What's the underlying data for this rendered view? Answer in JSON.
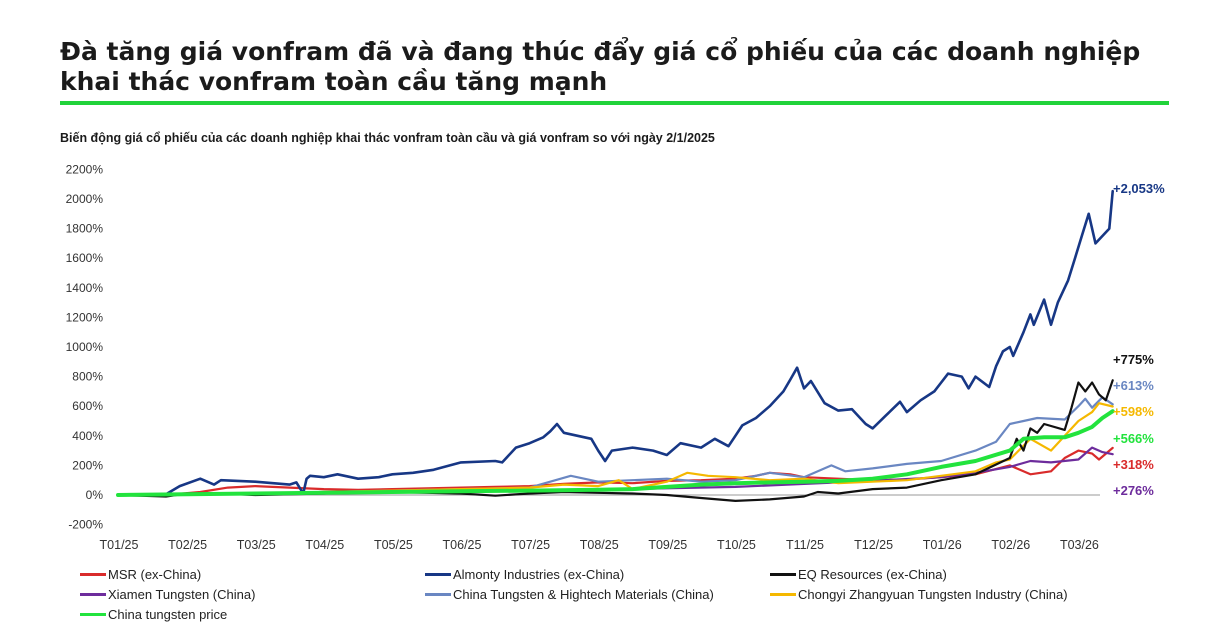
{
  "title": "Đà tăng giá vonfram đã và đang thúc đẩy giá cổ phiếu của các doanh nghiệp khai thác vonfram toàn cầu tăng mạnh",
  "accent_color": "#21d33a",
  "chart_data": {
    "type": "line",
    "title": "Biến động giá cổ phiếu của các doanh nghiệp khai thác vonfram toàn cầu và giá vonfram so với ngày 2/1/2025",
    "xlabel": "",
    "ylabel": "",
    "ylim": [
      -200,
      2200
    ],
    "y_ticks": [
      "-200%",
      "0%",
      "200%",
      "400%",
      "600%",
      "800%",
      "1000%",
      "1200%",
      "1400%",
      "1600%",
      "1800%",
      "2000%",
      "2200%"
    ],
    "x_ticks": [
      "T01/25",
      "T02/25",
      "T03/25",
      "T04/25",
      "T05/25",
      "T06/25",
      "T07/25",
      "T08/25",
      "T09/25",
      "T10/25",
      "T11/25",
      "T12/25",
      "T01/26",
      "T02/26",
      "T03/26"
    ],
    "grid": false,
    "legend_position": "bottom",
    "series": [
      {
        "name": "MSR (ex-China)",
        "color": "#d92b2b",
        "end_label": "+318%",
        "points": [
          [
            0,
            0
          ],
          [
            0.8,
            5
          ],
          [
            1.2,
            20
          ],
          [
            1.6,
            50
          ],
          [
            2,
            60
          ],
          [
            2.5,
            50
          ],
          [
            3,
            40
          ],
          [
            3.5,
            35
          ],
          [
            4,
            40
          ],
          [
            4.5,
            45
          ],
          [
            5,
            50
          ],
          [
            5.5,
            55
          ],
          [
            6,
            60
          ],
          [
            6.5,
            75
          ],
          [
            7,
            85
          ],
          [
            7.5,
            80
          ],
          [
            8,
            95
          ],
          [
            8.5,
            100
          ],
          [
            9,
            110
          ],
          [
            9.3,
            130
          ],
          [
            9.5,
            150
          ],
          [
            9.8,
            140
          ],
          [
            10,
            120
          ],
          [
            10.5,
            110
          ],
          [
            11,
            100
          ],
          [
            11.5,
            105
          ],
          [
            12,
            120
          ],
          [
            12.5,
            140
          ],
          [
            13,
            200
          ],
          [
            13.3,
            140
          ],
          [
            13.6,
            160
          ],
          [
            13.8,
            250
          ],
          [
            14,
            300
          ],
          [
            14.2,
            280
          ],
          [
            14.3,
            240
          ],
          [
            14.5,
            318
          ]
        ]
      },
      {
        "name": "Almonty Industries (ex-China)",
        "color": "#173785",
        "end_label": "+2,053%",
        "points": [
          [
            0,
            0
          ],
          [
            0.7,
            5
          ],
          [
            0.9,
            60
          ],
          [
            1.2,
            110
          ],
          [
            1.4,
            70
          ],
          [
            1.5,
            100
          ],
          [
            2,
            90
          ],
          [
            2.5,
            70
          ],
          [
            2.6,
            85
          ],
          [
            2.7,
            10
          ],
          [
            2.75,
            110
          ],
          [
            2.8,
            130
          ],
          [
            3,
            120
          ],
          [
            3.2,
            140
          ],
          [
            3.5,
            110
          ],
          [
            3.8,
            120
          ],
          [
            4,
            140
          ],
          [
            4.3,
            150
          ],
          [
            4.6,
            170
          ],
          [
            5,
            220
          ],
          [
            5.5,
            230
          ],
          [
            5.6,
            220
          ],
          [
            5.8,
            320
          ],
          [
            6,
            350
          ],
          [
            6.2,
            390
          ],
          [
            6.3,
            430
          ],
          [
            6.4,
            480
          ],
          [
            6.5,
            420
          ],
          [
            6.7,
            400
          ],
          [
            6.9,
            380
          ],
          [
            7,
            300
          ],
          [
            7.1,
            230
          ],
          [
            7.2,
            300
          ],
          [
            7.5,
            320
          ],
          [
            7.8,
            300
          ],
          [
            8,
            270
          ],
          [
            8.2,
            350
          ],
          [
            8.5,
            320
          ],
          [
            8.7,
            380
          ],
          [
            8.9,
            330
          ],
          [
            9,
            400
          ],
          [
            9.1,
            470
          ],
          [
            9.3,
            520
          ],
          [
            9.5,
            600
          ],
          [
            9.7,
            700
          ],
          [
            9.8,
            780
          ],
          [
            9.9,
            860
          ],
          [
            10,
            720
          ],
          [
            10.1,
            770
          ],
          [
            10.3,
            620
          ],
          [
            10.5,
            570
          ],
          [
            10.7,
            580
          ],
          [
            10.9,
            480
          ],
          [
            11,
            450
          ],
          [
            11.2,
            540
          ],
          [
            11.4,
            630
          ],
          [
            11.5,
            560
          ],
          [
            11.7,
            640
          ],
          [
            11.9,
            700
          ],
          [
            12,
            760
          ],
          [
            12.1,
            820
          ],
          [
            12.3,
            800
          ],
          [
            12.4,
            720
          ],
          [
            12.5,
            800
          ],
          [
            12.7,
            730
          ],
          [
            12.8,
            870
          ],
          [
            12.9,
            970
          ],
          [
            13,
            1000
          ],
          [
            13.05,
            940
          ],
          [
            13.2,
            1100
          ],
          [
            13.3,
            1220
          ],
          [
            13.35,
            1150
          ],
          [
            13.5,
            1320
          ],
          [
            13.6,
            1150
          ],
          [
            13.7,
            1300
          ],
          [
            13.85,
            1450
          ],
          [
            13.95,
            1600
          ],
          [
            14.05,
            1750
          ],
          [
            14.15,
            1900
          ],
          [
            14.25,
            1700
          ],
          [
            14.35,
            1750
          ],
          [
            14.45,
            1800
          ],
          [
            14.5,
            2053
          ]
        ]
      },
      {
        "name": "EQ Resources (ex-China)",
        "color": "#111111",
        "end_label": "+775%",
        "points": [
          [
            0,
            0
          ],
          [
            0.7,
            -10
          ],
          [
            1,
            10
          ],
          [
            1.5,
            10
          ],
          [
            2,
            0
          ],
          [
            2.5,
            5
          ],
          [
            3,
            10
          ],
          [
            3.5,
            20
          ],
          [
            4,
            20
          ],
          [
            4.5,
            15
          ],
          [
            5,
            10
          ],
          [
            5.5,
            -5
          ],
          [
            6,
            10
          ],
          [
            6.5,
            20
          ],
          [
            7,
            15
          ],
          [
            7.5,
            10
          ],
          [
            8,
            0
          ],
          [
            8.5,
            -20
          ],
          [
            9,
            -40
          ],
          [
            9.5,
            -30
          ],
          [
            10,
            -10
          ],
          [
            10.2,
            20
          ],
          [
            10.5,
            10
          ],
          [
            11,
            40
          ],
          [
            11.5,
            50
          ],
          [
            12,
            100
          ],
          [
            12.5,
            140
          ],
          [
            13,
            250
          ],
          [
            13.1,
            380
          ],
          [
            13.2,
            300
          ],
          [
            13.3,
            450
          ],
          [
            13.4,
            420
          ],
          [
            13.5,
            480
          ],
          [
            13.8,
            440
          ],
          [
            13.9,
            590
          ],
          [
            14,
            760
          ],
          [
            14.1,
            700
          ],
          [
            14.2,
            760
          ],
          [
            14.3,
            680
          ],
          [
            14.4,
            640
          ],
          [
            14.5,
            775
          ]
        ]
      },
      {
        "name": "Xiamen Tungsten (China)",
        "color": "#6d2c9c",
        "end_label": "+276%",
        "points": [
          [
            0,
            0
          ],
          [
            1,
            5
          ],
          [
            2,
            10
          ],
          [
            3,
            15
          ],
          [
            4,
            20
          ],
          [
            5,
            25
          ],
          [
            6,
            30
          ],
          [
            7,
            35
          ],
          [
            8,
            45
          ],
          [
            9,
            55
          ],
          [
            10,
            75
          ],
          [
            11,
            95
          ],
          [
            12,
            120
          ],
          [
            12.5,
            150
          ],
          [
            13,
            190
          ],
          [
            13.3,
            230
          ],
          [
            13.6,
            220
          ],
          [
            14,
            240
          ],
          [
            14.2,
            320
          ],
          [
            14.35,
            290
          ],
          [
            14.5,
            276
          ]
        ]
      },
      {
        "name": "China Tungsten & Hightech Materials (China)",
        "color": "#6a87c2",
        "end_label": "+613%",
        "points": [
          [
            0,
            0
          ],
          [
            1,
            5
          ],
          [
            2,
            10
          ],
          [
            3,
            20
          ],
          [
            4,
            30
          ],
          [
            5,
            40
          ],
          [
            6,
            50
          ],
          [
            6.6,
            130
          ],
          [
            7,
            90
          ],
          [
            7.5,
            100
          ],
          [
            8,
            110
          ],
          [
            8.5,
            90
          ],
          [
            9,
            100
          ],
          [
            9.5,
            150
          ],
          [
            10,
            120
          ],
          [
            10.4,
            200
          ],
          [
            10.6,
            160
          ],
          [
            11,
            180
          ],
          [
            11.5,
            210
          ],
          [
            12,
            230
          ],
          [
            12.5,
            300
          ],
          [
            12.8,
            360
          ],
          [
            13,
            480
          ],
          [
            13.2,
            500
          ],
          [
            13.4,
            520
          ],
          [
            13.8,
            510
          ],
          [
            14,
            600
          ],
          [
            14.1,
            650
          ],
          [
            14.2,
            590
          ],
          [
            14.35,
            660
          ],
          [
            14.5,
            613
          ]
        ]
      },
      {
        "name": "Chongyi Zhangyuan Tungsten Industry (China)",
        "color": "#f5b800",
        "end_label": "+598%",
        "points": [
          [
            0,
            0
          ],
          [
            1,
            5
          ],
          [
            2,
            10
          ],
          [
            3,
            20
          ],
          [
            4,
            30
          ],
          [
            5,
            40
          ],
          [
            6,
            50
          ],
          [
            6.5,
            70
          ],
          [
            7,
            60
          ],
          [
            7.3,
            100
          ],
          [
            7.5,
            40
          ],
          [
            8,
            90
          ],
          [
            8.3,
            150
          ],
          [
            8.6,
            130
          ],
          [
            9,
            120
          ],
          [
            9.5,
            100
          ],
          [
            10,
            110
          ],
          [
            10.5,
            80
          ],
          [
            11,
            90
          ],
          [
            11.5,
            100
          ],
          [
            12,
            130
          ],
          [
            12.5,
            160
          ],
          [
            12.8,
            220
          ],
          [
            13,
            240
          ],
          [
            13.3,
            380
          ],
          [
            13.6,
            300
          ],
          [
            14,
            500
          ],
          [
            14.2,
            560
          ],
          [
            14.3,
            620
          ],
          [
            14.5,
            598
          ]
        ]
      },
      {
        "name": "China tungsten price",
        "color": "#22e33d",
        "end_label": "+566%",
        "points": [
          [
            0,
            0
          ],
          [
            1,
            5
          ],
          [
            2,
            10
          ],
          [
            3,
            15
          ],
          [
            4,
            20
          ],
          [
            5,
            25
          ],
          [
            6,
            30
          ],
          [
            7,
            35
          ],
          [
            7.5,
            40
          ],
          [
            8,
            55
          ],
          [
            8.5,
            70
          ],
          [
            9,
            80
          ],
          [
            9.5,
            85
          ],
          [
            10,
            90
          ],
          [
            10.5,
            95
          ],
          [
            11,
            110
          ],
          [
            11.5,
            140
          ],
          [
            12,
            190
          ],
          [
            12.5,
            230
          ],
          [
            13,
            300
          ],
          [
            13.2,
            380
          ],
          [
            13.5,
            390
          ],
          [
            13.8,
            390
          ],
          [
            14,
            420
          ],
          [
            14.2,
            460
          ],
          [
            14.35,
            520
          ],
          [
            14.5,
            566
          ]
        ]
      }
    ]
  }
}
